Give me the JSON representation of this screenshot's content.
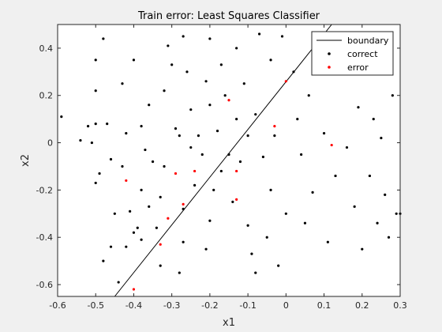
{
  "chart_data": {
    "type": "scatter",
    "title": "Train error: Least Squares Classifier",
    "xlabel": "x1",
    "ylabel": "x2",
    "xlim": [
      -0.6,
      0.3
    ],
    "ylim": [
      -0.65,
      0.5
    ],
    "xticks": [
      "-0.6",
      "-0.5",
      "-0.4",
      "-0.3",
      "-0.2",
      "-0.1",
      "0",
      "0.1",
      "0.2",
      "0.3"
    ],
    "yticks": [
      "-0.6",
      "-0.4",
      "-0.2",
      "0",
      "0.2",
      "0.4"
    ],
    "legend_position": "top-right",
    "colors": {
      "boundary": "#000000",
      "correct": "#000000",
      "error": "#ff0000"
    },
    "legend": [
      "boundary",
      "correct",
      "error"
    ],
    "boundary": {
      "x": [
        -0.45,
        0.12
      ],
      "y": [
        -0.65,
        0.5
      ]
    },
    "series": [
      {
        "name": "correct",
        "points": [
          [
            -0.59,
            0.11
          ],
          [
            -0.54,
            0.01
          ],
          [
            -0.52,
            0.07
          ],
          [
            -0.5,
            0.35
          ],
          [
            -0.5,
            0.08
          ],
          [
            -0.48,
            0.44
          ],
          [
            -0.47,
            0.08
          ],
          [
            -0.46,
            -0.07
          ],
          [
            -0.5,
            -0.17
          ],
          [
            -0.49,
            -0.13
          ],
          [
            -0.5,
            0.22
          ],
          [
            -0.51,
            0.0
          ],
          [
            -0.48,
            -0.5
          ],
          [
            -0.46,
            -0.44
          ],
          [
            -0.45,
            -0.3
          ],
          [
            -0.44,
            -0.59
          ],
          [
            -0.42,
            -0.44
          ],
          [
            -0.4,
            -0.38
          ],
          [
            -0.39,
            -0.36
          ],
          [
            -0.38,
            -0.41
          ],
          [
            -0.41,
            -0.29
          ],
          [
            -0.43,
            -0.1
          ],
          [
            -0.42,
            0.04
          ],
          [
            -0.43,
            0.25
          ],
          [
            -0.4,
            0.35
          ],
          [
            -0.38,
            0.07
          ],
          [
            -0.37,
            -0.03
          ],
          [
            -0.36,
            0.16
          ],
          [
            -0.35,
            -0.08
          ],
          [
            -0.33,
            -0.23
          ],
          [
            -0.32,
            -0.1
          ],
          [
            -0.38,
            -0.2
          ],
          [
            -0.36,
            -0.27
          ],
          [
            -0.34,
            -0.36
          ],
          [
            -0.33,
            -0.52
          ],
          [
            -0.32,
            0.22
          ],
          [
            -0.31,
            0.41
          ],
          [
            -0.3,
            0.33
          ],
          [
            -0.29,
            0.06
          ],
          [
            -0.28,
            0.03
          ],
          [
            -0.27,
            -0.28
          ],
          [
            -0.27,
            -0.42
          ],
          [
            -0.28,
            -0.55
          ],
          [
            -0.27,
            0.45
          ],
          [
            -0.26,
            0.3
          ],
          [
            -0.25,
            0.14
          ],
          [
            -0.25,
            -0.02
          ],
          [
            -0.24,
            -0.18
          ],
          [
            -0.23,
            0.03
          ],
          [
            -0.22,
            -0.05
          ],
          [
            -0.21,
            0.26
          ],
          [
            -0.2,
            0.44
          ],
          [
            -0.2,
            0.16
          ],
          [
            -0.2,
            -0.33
          ],
          [
            -0.21,
            -0.45
          ],
          [
            -0.19,
            -0.2
          ],
          [
            -0.18,
            0.05
          ],
          [
            -0.17,
            -0.12
          ],
          [
            -0.17,
            0.33
          ],
          [
            -0.16,
            0.2
          ],
          [
            -0.15,
            -0.05
          ],
          [
            -0.14,
            -0.25
          ],
          [
            -0.13,
            0.4
          ],
          [
            -0.13,
            0.1
          ],
          [
            -0.12,
            -0.08
          ],
          [
            -0.11,
            0.25
          ],
          [
            -0.1,
            0.03
          ],
          [
            -0.1,
            -0.35
          ],
          [
            -0.09,
            -0.47
          ],
          [
            -0.08,
            -0.55
          ],
          [
            -0.08,
            0.12
          ],
          [
            -0.07,
            0.46
          ],
          [
            -0.06,
            -0.06
          ],
          [
            -0.05,
            -0.4
          ],
          [
            -0.04,
            0.35
          ],
          [
            -0.04,
            -0.2
          ],
          [
            -0.03,
            0.03
          ],
          [
            -0.02,
            -0.52
          ],
          [
            -0.01,
            0.45
          ],
          [
            0.0,
            -0.3
          ],
          [
            0.02,
            0.3
          ],
          [
            0.03,
            0.1
          ],
          [
            0.04,
            -0.05
          ],
          [
            0.05,
            -0.34
          ],
          [
            0.06,
            0.2
          ],
          [
            0.07,
            -0.21
          ],
          [
            0.08,
            0.42
          ],
          [
            0.1,
            0.04
          ],
          [
            0.11,
            -0.42
          ],
          [
            0.12,
            0.3
          ],
          [
            0.13,
            -0.14
          ],
          [
            0.15,
            0.36
          ],
          [
            0.16,
            -0.02
          ],
          [
            0.18,
            -0.27
          ],
          [
            0.19,
            0.15
          ],
          [
            0.2,
            -0.45
          ],
          [
            0.21,
            0.42
          ],
          [
            0.22,
            -0.14
          ],
          [
            0.23,
            0.1
          ],
          [
            0.24,
            -0.34
          ],
          [
            0.25,
            0.02
          ],
          [
            0.26,
            -0.22
          ],
          [
            0.27,
            -0.4
          ],
          [
            0.28,
            0.2
          ],
          [
            0.29,
            -0.3
          ],
          [
            0.3,
            -0.3
          ]
        ]
      },
      {
        "name": "error",
        "points": [
          [
            -0.42,
            -0.16
          ],
          [
            -0.4,
            -0.62
          ],
          [
            -0.33,
            -0.43
          ],
          [
            -0.31,
            -0.32
          ],
          [
            -0.29,
            -0.13
          ],
          [
            -0.27,
            -0.26
          ],
          [
            -0.24,
            -0.12
          ],
          [
            -0.15,
            0.18
          ],
          [
            -0.13,
            -0.12
          ],
          [
            -0.13,
            -0.24
          ],
          [
            -0.03,
            0.07
          ],
          [
            0.0,
            0.26
          ],
          [
            0.12,
            -0.01
          ]
        ]
      }
    ]
  }
}
